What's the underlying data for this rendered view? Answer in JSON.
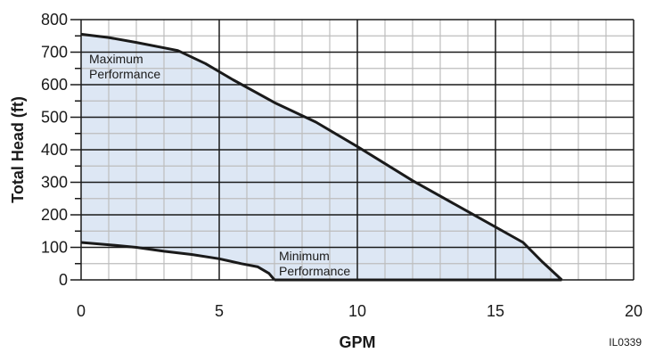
{
  "chart_data": {
    "type": "area",
    "xlabel": "GPM",
    "ylabel": "Total Head (ft)",
    "xlim": [
      0,
      20
    ],
    "ylim": [
      0,
      800
    ],
    "x_ticks": [
      "0",
      "5",
      "10",
      "15",
      "20"
    ],
    "y_ticks": [
      "0",
      "100",
      "200",
      "300",
      "400",
      "500",
      "600",
      "700",
      "800"
    ],
    "x_major_step": 5,
    "x_minor_step": 1,
    "y_major_step": 100,
    "y_minor_step": 50,
    "grid": true,
    "fill_color": "#dde7f4",
    "line_color": "#1a1a1a",
    "series": [
      {
        "label": "Maximum Performance",
        "x": [
          0,
          1,
          2,
          3.5,
          4.5,
          5.5,
          7,
          8.5,
          10,
          12,
          14,
          16,
          16.7,
          17.4
        ],
        "y": [
          755,
          745,
          730,
          705,
          665,
          615,
          545,
          485,
          410,
          305,
          210,
          115,
          55,
          0
        ]
      },
      {
        "label": "Minimum Performance",
        "x": [
          0,
          1,
          2,
          3,
          4,
          5,
          5.8,
          6.4,
          6.8,
          7
        ],
        "y": [
          115,
          108,
          100,
          88,
          78,
          65,
          50,
          40,
          20,
          0
        ]
      }
    ],
    "code": "IL0339"
  }
}
